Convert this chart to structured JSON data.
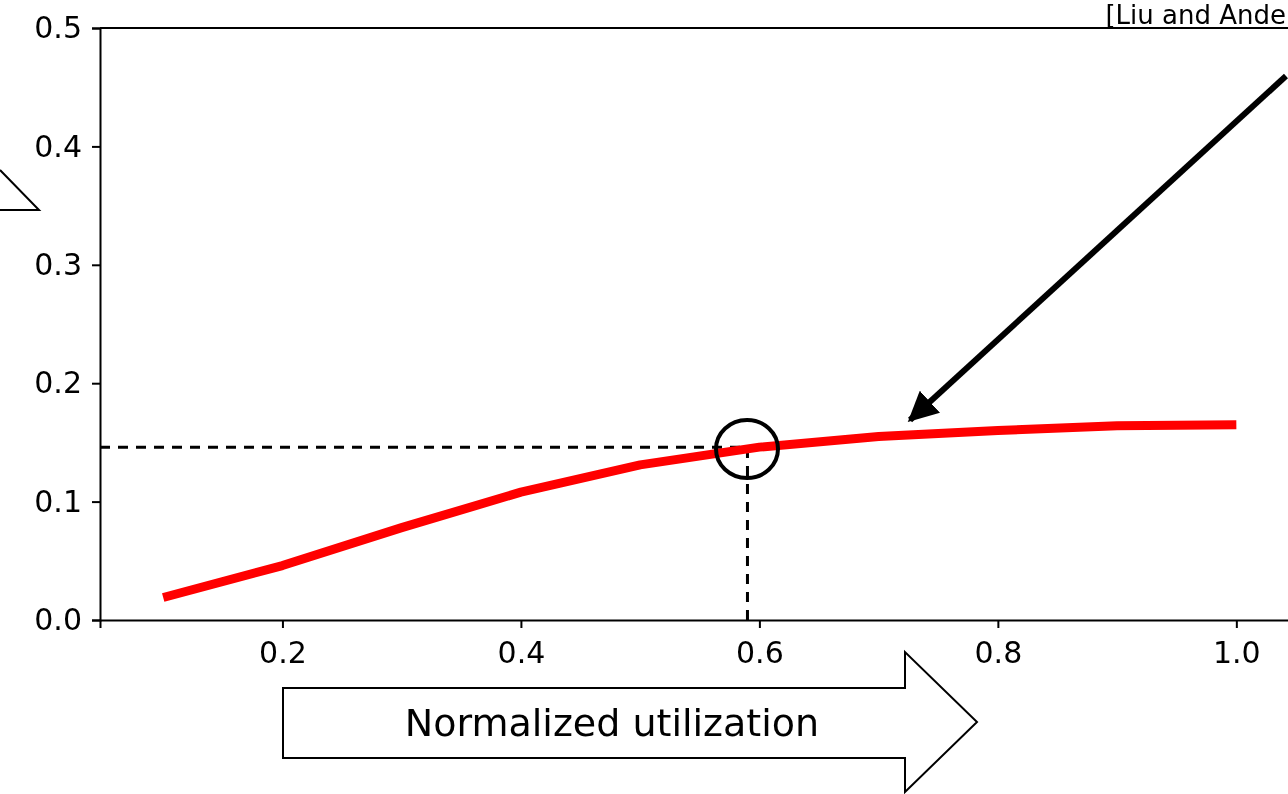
{
  "chart_data": {
    "type": "line",
    "xlabel": "Normalized utilization",
    "annotations": [
      "[Liu and Ande"
    ],
    "x": [
      0.1,
      0.2,
      0.3,
      0.4,
      0.5,
      0.6,
      0.7,
      0.8,
      0.9,
      1.0
    ],
    "series": [
      {
        "color": "#ff0000",
        "values": [
          0.019,
          0.046,
          0.078,
          0.108,
          0.131,
          0.146,
          0.155,
          0.16,
          0.164,
          0.165
        ]
      }
    ],
    "xlim": [
      0.047,
      1.045
    ],
    "ylim": [
      0,
      0.5
    ],
    "xticks": [
      0.2,
      0.4,
      0.6,
      0.8,
      {
        "value": 1.0,
        "label": "1.0"
      }
    ],
    "yticks": [
      {
        "value": 0,
        "label": "0.0"
      },
      0.1,
      0.2,
      0.3,
      0.4,
      0.5
    ],
    "ref_lines": [
      {
        "axis": "y",
        "value": 0.146,
        "color": "#000000",
        "line_style": "dashed"
      },
      {
        "axis": "x",
        "value": 0.59,
        "color": "#000000",
        "line_style": "dashed"
      }
    ],
    "grid": false,
    "marker": "none",
    "line_style": "solid"
  }
}
